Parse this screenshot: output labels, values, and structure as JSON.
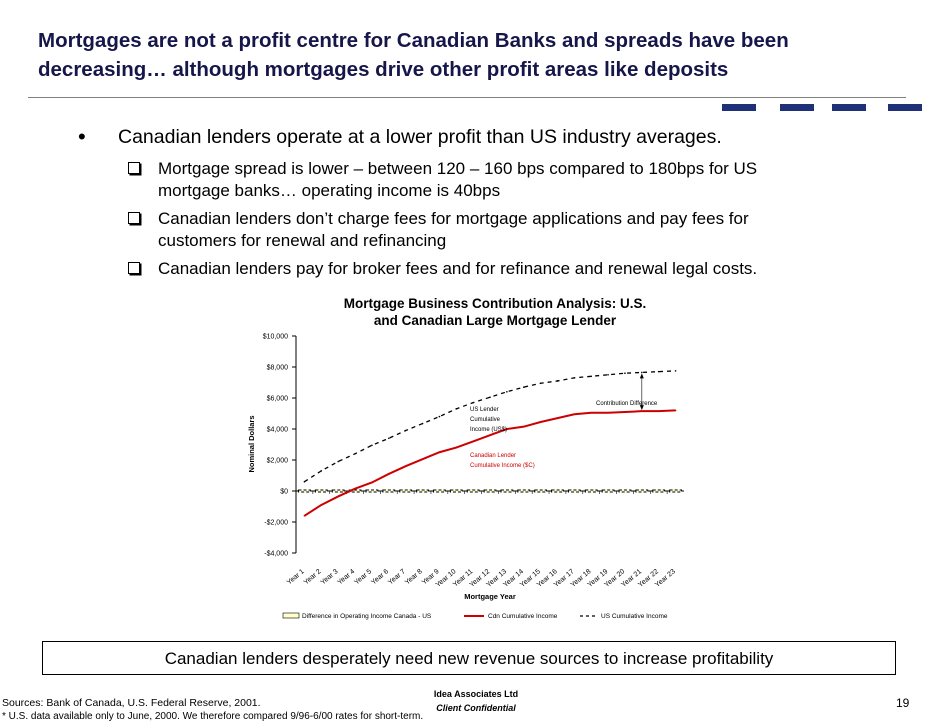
{
  "title": {
    "line1": "Mortgages are not a profit centre for Canadian Banks and spreads have been",
    "line2": "decreasing… although mortgages drive other profit areas like deposits"
  },
  "accent_color": "#1f2f78",
  "title_color": "#16164a",
  "bullet": {
    "symbol": "•",
    "text": "Canadian lenders operate at a lower profit than US industry averages."
  },
  "sub_bullets": [
    {
      "line1": "Mortgage spread is lower – between 120 – 160 bps compared to 180bps for US",
      "line2": "mortgage banks… operating income is 40bps"
    },
    {
      "line1": "Canadian lenders don’t charge fees for mortgage applications and pay fees for",
      "line2": "customers for renewal and refinancing"
    },
    {
      "line1": "Canadian lenders pay for broker fees and for refinance and renewal legal costs.",
      "line2": ""
    }
  ],
  "chart_data": {
    "type": "line",
    "title_line1": "Mortgage Business Contribution Analysis: U.S.",
    "title_line2": "and Canadian Large Mortgage Lender",
    "ylabel": "Nominal Dollars",
    "xlabel": "Mortgage Year",
    "ylim": [
      -4000,
      10000
    ],
    "yticks": [
      10000,
      8000,
      6000,
      4000,
      2000,
      0,
      -2000,
      -4000
    ],
    "ytick_labels": [
      "$10,000",
      "$8,000",
      "$6,000",
      "$4,000",
      "$2,000",
      "$0",
      "-$2,000",
      "-$4,000"
    ],
    "categories": [
      "Year 1",
      "Year 2",
      "Year 3",
      "Year 4",
      "Year 5",
      "Year 6",
      "Year 7",
      "Year 8",
      "Year 9",
      "Year 10",
      "Year 11",
      "Year 12",
      "Year 13",
      "Year 14",
      "Year 15",
      "Year 16",
      "Year 17",
      "Year 18",
      "Year 19",
      "Year 20",
      "Year 21",
      "Year 22",
      "Year 23"
    ],
    "series": [
      {
        "name": "Difference in Operating Income Canada - US",
        "color": "#000000",
        "style": "bars",
        "values": [
          0,
          0,
          0,
          0,
          0,
          0,
          0,
          0,
          0,
          0,
          0,
          0,
          0,
          0,
          0,
          0,
          0,
          0,
          0,
          0,
          0,
          0,
          0
        ]
      },
      {
        "name": "Cdn Cumulative Income",
        "color": "#cc0000",
        "style": "solid",
        "values": [
          -1600,
          -900,
          -350,
          150,
          550,
          1100,
          1600,
          2050,
          2500,
          2800,
          3200,
          3600,
          4000,
          4150,
          4450,
          4700,
          4950,
          5050,
          5050,
          5100,
          5150,
          5150,
          5200
        ]
      },
      {
        "name": "US Cumulative Income",
        "color": "#000000",
        "style": "dashed",
        "values": [
          600,
          1300,
          1900,
          2400,
          2950,
          3400,
          3900,
          4350,
          4800,
          5300,
          5700,
          6050,
          6400,
          6700,
          6950,
          7100,
          7300,
          7400,
          7500,
          7600,
          7650,
          7700,
          7750
        ]
      }
    ],
    "annotations": {
      "contribution": "Contribution Difference",
      "us_lender_1": "US Lender",
      "us_lender_2": "Cumulative",
      "us_lender_3": "Income (US$)",
      "cdn_lender_1": "Canadian Lender",
      "cdn_lender_2": "Cumulative Income ($C)"
    },
    "legend_position": "bottom"
  },
  "callout": "Canadian lenders desperately need new revenue sources to increase profitability",
  "footer": {
    "sources": "Sources: Bank of Canada, U.S. Federal Reserve, 2001.",
    "footnote": "* U.S. data available only to June, 2000. We therefore compared 9/96-6/00 rates for short-term.",
    "company": "Idea Associates Ltd",
    "confidential": "Client Confidential",
    "page_number": "19"
  }
}
